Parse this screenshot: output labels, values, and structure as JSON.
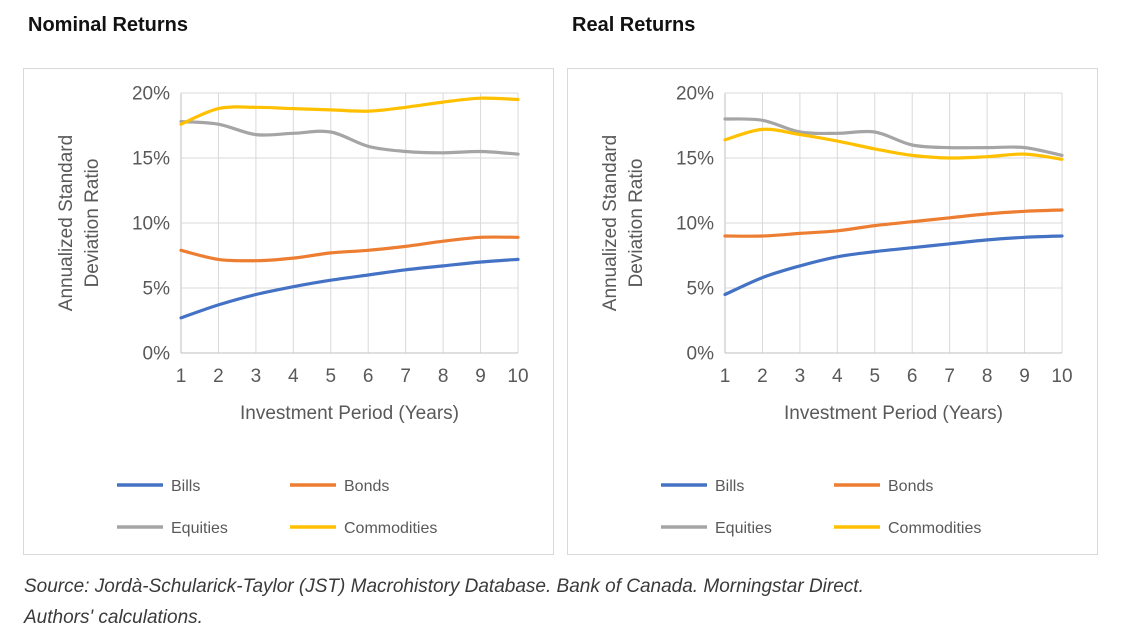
{
  "page": {
    "source_line1": "Source: Jordà-Schularick-Taylor (JST) Macrohistory Database. Bank of Canada. Morningstar Direct.",
    "source_line2": "Authors' calculations."
  },
  "colors": {
    "bills": "#4472C4",
    "bonds": "#ED7D31",
    "equities": "#A5A5A5",
    "commodities": "#FFC000",
    "axis_text": "#595959",
    "legend_text": "#595959",
    "gridline": "#D9D9D9",
    "axis_line": "#BFBFBF",
    "panel_border": "#D9D9D9",
    "title_text": "#121212"
  },
  "chart_data": [
    {
      "type": "line",
      "title": "Nominal Returns",
      "xlabel": "Investment Period (Years)",
      "ylabel": "Annualized Standard Deviation Ratio",
      "ylabel_lines": [
        "Annualized Standard",
        "Deviation Ratio"
      ],
      "x": [
        1,
        2,
        3,
        4,
        5,
        6,
        7,
        8,
        9,
        10
      ],
      "ylim": [
        0,
        20
      ],
      "yticks": [
        0,
        5,
        10,
        15,
        20
      ],
      "ytick_labels": [
        "0%",
        "5%",
        "10%",
        "15%",
        "20%"
      ],
      "grid": true,
      "legend_position": "bottom",
      "series": [
        {
          "name": "Bills",
          "color": "#4472C4",
          "values": [
            2.7,
            3.7,
            4.5,
            5.1,
            5.6,
            6.0,
            6.4,
            6.7,
            7.0,
            7.2
          ]
        },
        {
          "name": "Bonds",
          "color": "#ED7D31",
          "values": [
            7.9,
            7.2,
            7.1,
            7.3,
            7.7,
            7.9,
            8.2,
            8.6,
            8.9,
            8.9
          ]
        },
        {
          "name": "Equities",
          "color": "#A5A5A5",
          "values": [
            17.8,
            17.6,
            16.8,
            16.9,
            17.0,
            15.9,
            15.5,
            15.4,
            15.5,
            15.3
          ]
        },
        {
          "name": "Commodities",
          "color": "#FFC000",
          "values": [
            17.6,
            18.8,
            18.9,
            18.8,
            18.7,
            18.6,
            18.9,
            19.3,
            19.6,
            19.5
          ]
        }
      ]
    },
    {
      "type": "line",
      "title": "Real Returns",
      "xlabel": "Investment Period (Years)",
      "ylabel": "Annualized Standard Deviation Ratio",
      "ylabel_lines": [
        "Annualized Standard",
        "Deviation Ratio"
      ],
      "x": [
        1,
        2,
        3,
        4,
        5,
        6,
        7,
        8,
        9,
        10
      ],
      "ylim": [
        0,
        20
      ],
      "yticks": [
        0,
        5,
        10,
        15,
        20
      ],
      "ytick_labels": [
        "0%",
        "5%",
        "10%",
        "15%",
        "20%"
      ],
      "grid": true,
      "legend_position": "bottom",
      "series": [
        {
          "name": "Bills",
          "color": "#4472C4",
          "values": [
            4.5,
            5.8,
            6.7,
            7.4,
            7.8,
            8.1,
            8.4,
            8.7,
            8.9,
            9.0
          ]
        },
        {
          "name": "Bonds",
          "color": "#ED7D31",
          "values": [
            9.0,
            9.0,
            9.2,
            9.4,
            9.8,
            10.1,
            10.4,
            10.7,
            10.9,
            11.0
          ]
        },
        {
          "name": "Equities",
          "color": "#A5A5A5",
          "values": [
            18.0,
            17.9,
            17.0,
            16.9,
            17.0,
            16.0,
            15.8,
            15.8,
            15.8,
            15.2
          ]
        },
        {
          "name": "Commodities",
          "color": "#FFC000",
          "values": [
            16.4,
            17.2,
            16.8,
            16.3,
            15.7,
            15.2,
            15.0,
            15.1,
            15.3,
            14.9
          ]
        }
      ]
    }
  ]
}
